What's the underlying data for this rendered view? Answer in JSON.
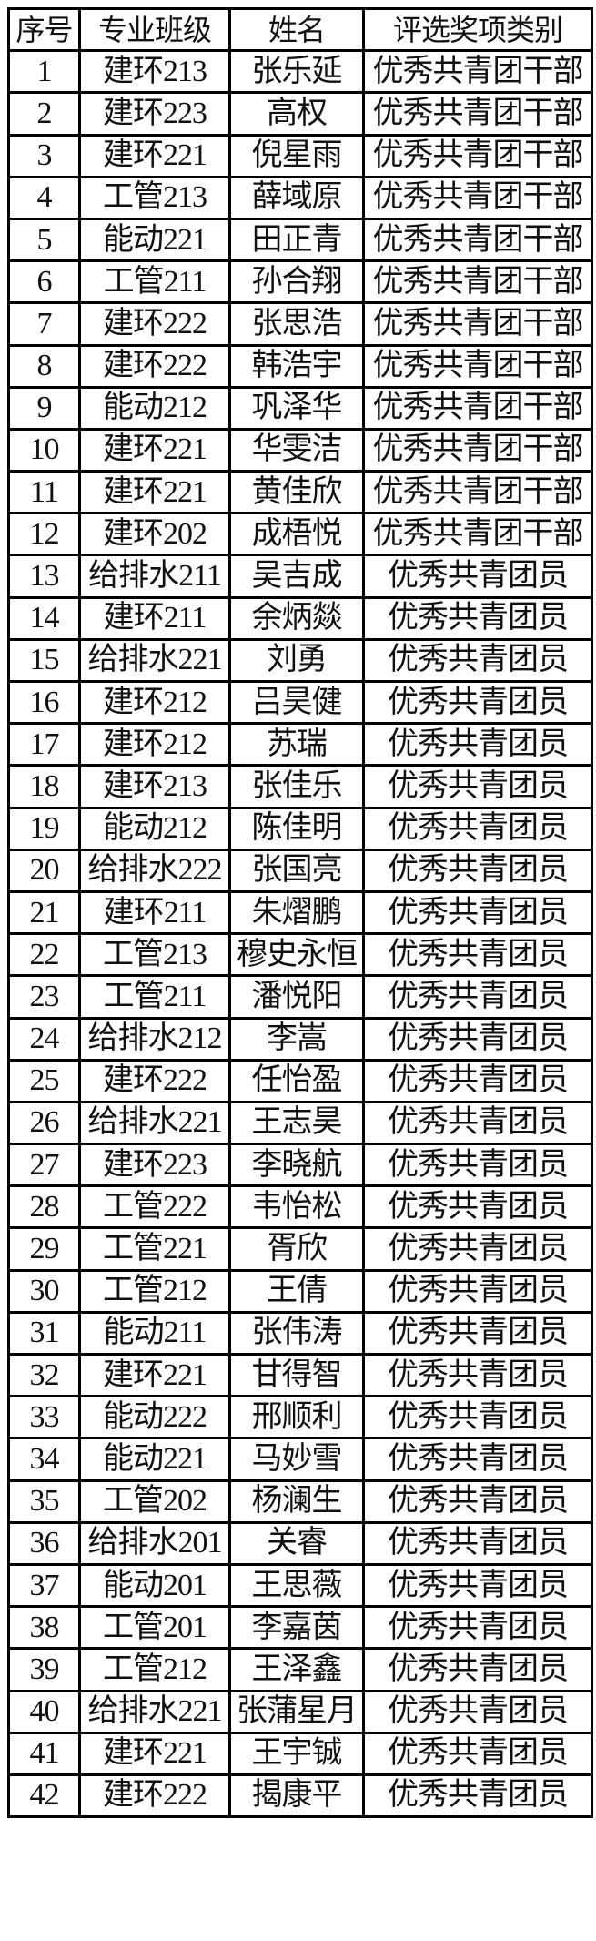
{
  "table": {
    "headers": [
      "序号",
      "专业班级",
      "姓名",
      "评选奖项类别"
    ],
    "rows": [
      [
        "1",
        "建环213",
        "张乐延",
        "优秀共青团干部"
      ],
      [
        "2",
        "建环223",
        "高权",
        "优秀共青团干部"
      ],
      [
        "3",
        "建环221",
        "倪星雨",
        "优秀共青团干部"
      ],
      [
        "4",
        "工管213",
        "薛域原",
        "优秀共青团干部"
      ],
      [
        "5",
        "能动221",
        "田正青",
        "优秀共青团干部"
      ],
      [
        "6",
        "工管211",
        "孙合翔",
        "优秀共青团干部"
      ],
      [
        "7",
        "建环222",
        "张思浩",
        "优秀共青团干部"
      ],
      [
        "8",
        "建环222",
        "韩浩宇",
        "优秀共青团干部"
      ],
      [
        "9",
        "能动212",
        "巩泽华",
        "优秀共青团干部"
      ],
      [
        "10",
        "建环221",
        "华雯洁",
        "优秀共青团干部"
      ],
      [
        "11",
        "建环221",
        "黄佳欣",
        "优秀共青团干部"
      ],
      [
        "12",
        "建环202",
        "成梧悦",
        "优秀共青团干部"
      ],
      [
        "13",
        "给排水211",
        "吴吉成",
        "优秀共青团员"
      ],
      [
        "14",
        "建环211",
        "余炳燚",
        "优秀共青团员"
      ],
      [
        "15",
        "给排水221",
        "刘勇",
        "优秀共青团员"
      ],
      [
        "16",
        "建环212",
        "吕昊健",
        "优秀共青团员"
      ],
      [
        "17",
        "建环212",
        "苏瑞",
        "优秀共青团员"
      ],
      [
        "18",
        "建环213",
        "张佳乐",
        "优秀共青团员"
      ],
      [
        "19",
        "能动212",
        "陈佳明",
        "优秀共青团员"
      ],
      [
        "20",
        "给排水222",
        "张国亮",
        "优秀共青团员"
      ],
      [
        "21",
        "建环211",
        "朱熠鹏",
        "优秀共青团员"
      ],
      [
        "22",
        "工管213",
        "穆史永恒",
        "优秀共青团员"
      ],
      [
        "23",
        "工管211",
        "潘悦阳",
        "优秀共青团员"
      ],
      [
        "24",
        "给排水212",
        "李嵩",
        "优秀共青团员"
      ],
      [
        "25",
        "建环222",
        "任怡盈",
        "优秀共青团员"
      ],
      [
        "26",
        "给排水221",
        "王志昊",
        "优秀共青团员"
      ],
      [
        "27",
        "建环223",
        "李晓航",
        "优秀共青团员"
      ],
      [
        "28",
        "工管222",
        "韦怡松",
        "优秀共青团员"
      ],
      [
        "29",
        "工管221",
        "胥欣",
        "优秀共青团员"
      ],
      [
        "30",
        "工管212",
        "王倩",
        "优秀共青团员"
      ],
      [
        "31",
        "能动211",
        "张伟涛",
        "优秀共青团员"
      ],
      [
        "32",
        "建环221",
        "甘得智",
        "优秀共青团员"
      ],
      [
        "33",
        "能动222",
        "邢顺利",
        "优秀共青团员"
      ],
      [
        "34",
        "能动221",
        "马妙雪",
        "优秀共青团员"
      ],
      [
        "35",
        "工管202",
        "杨澜生",
        "优秀共青团员"
      ],
      [
        "36",
        "给排水201",
        "关睿",
        "优秀共青团员"
      ],
      [
        "37",
        "能动201",
        "王思薇",
        "优秀共青团员"
      ],
      [
        "38",
        "工管201",
        "李嘉茵",
        "优秀共青团员"
      ],
      [
        "39",
        "工管212",
        "王泽鑫",
        "优秀共青团员"
      ],
      [
        "40",
        "给排水221",
        "张蒲星月",
        "优秀共青团员"
      ],
      [
        "41",
        "建环221",
        "王宇铖",
        "优秀共青团员"
      ],
      [
        "42",
        "建环222",
        "揭康平",
        "优秀共青团员"
      ]
    ]
  }
}
